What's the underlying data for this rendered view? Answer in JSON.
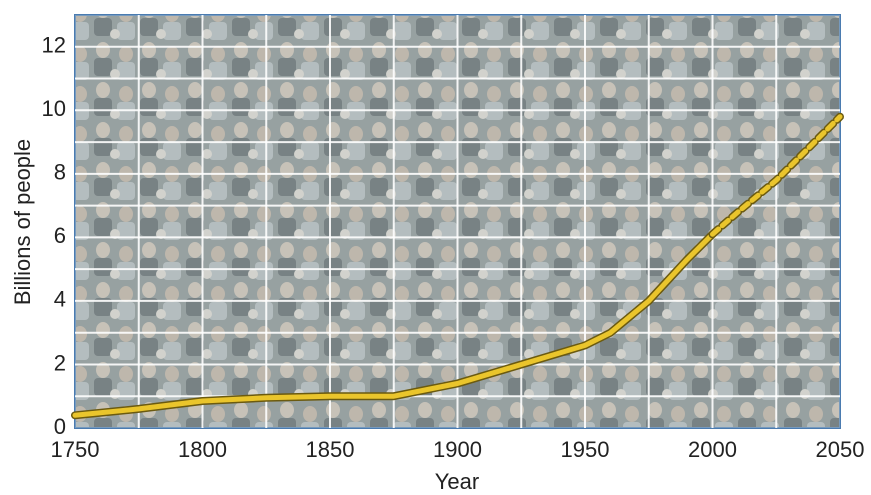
{
  "chart_data": {
    "type": "line",
    "x_label": "Year",
    "y_label": "Billions of people",
    "xlim": [
      1750,
      2050
    ],
    "xticks": [
      1750,
      1800,
      1850,
      1900,
      1950,
      2000,
      2050
    ],
    "x_grid": [
      1775,
      1800,
      1825,
      1850,
      1875,
      1900,
      1925,
      1950,
      1975,
      2000,
      2025
    ],
    "ylim": [
      0,
      13
    ],
    "yticks": [
      0,
      2,
      4,
      6,
      8,
      10,
      12
    ],
    "y_grid": [
      1,
      2,
      3,
      4,
      5,
      6,
      7,
      8,
      9,
      10,
      11,
      12
    ],
    "grid": true,
    "series": [
      {
        "color": "#eac52c",
        "dashed": false,
        "x": [
          1750,
          1775,
          1800,
          1825,
          1850,
          1875,
          1900,
          1925,
          1950,
          1960,
          1975,
          1990,
          2000
        ],
        "values": [
          0.4,
          0.6,
          0.85,
          0.95,
          1.0,
          1.0,
          1.4,
          2.0,
          2.6,
          3.0,
          4.0,
          5.3,
          6.1
        ]
      },
      {
        "color": "#eac52c",
        "dashed": true,
        "x": [
          2000,
          2010,
          2025,
          2040,
          2050
        ],
        "values": [
          6.1,
          6.8,
          7.8,
          9.0,
          9.8
        ]
      }
    ]
  }
}
